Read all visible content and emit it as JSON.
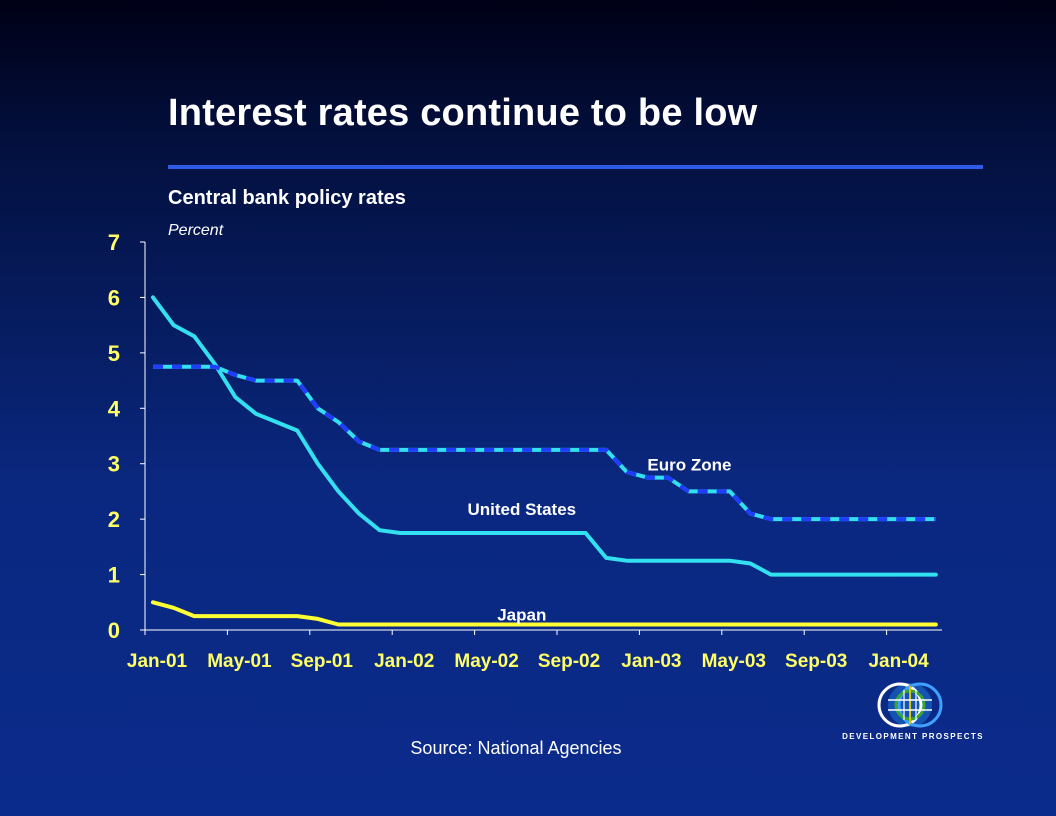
{
  "slide": {
    "title": "Interest rates continue to be low",
    "subtitle": "Central bank policy rates",
    "unit_label": "Percent",
    "source": "Source: National Agencies",
    "logo_text": "DEVELOPMENT PROSPECTS"
  },
  "colors": {
    "title_rule": "#2d5be6",
    "axis": "#ffffff",
    "y_tick_text": "#ffff66",
    "x_tick_text": "#ffff66"
  },
  "chart_data": {
    "type": "line",
    "title": "Central bank policy rates",
    "ylabel": "Percent",
    "xlabel": "",
    "ylim": [
      0,
      7
    ],
    "x_start": "Jan-01",
    "x_tick_labels": [
      "Jan-01",
      "May-01",
      "Sep-01",
      "Jan-02",
      "May-02",
      "Sep-02",
      "Jan-03",
      "May-03",
      "Sep-03",
      "Jan-04"
    ],
    "y_ticks": [
      0,
      1,
      2,
      3,
      4,
      5,
      6,
      7
    ],
    "grid": false,
    "legend": "inline labels",
    "series": [
      {
        "name": "United States",
        "style": "solid",
        "color": "#33e0f0",
        "label_at": [
          "Jul-02",
          2.2
        ],
        "points": [
          [
            "Jan-01",
            6.0
          ],
          [
            "Feb-01",
            5.5
          ],
          [
            "Mar-01",
            5.3
          ],
          [
            "Apr-01",
            4.8
          ],
          [
            "May-01",
            4.2
          ],
          [
            "Jun-01",
            3.9
          ],
          [
            "Jul-01",
            3.75
          ],
          [
            "Aug-01",
            3.6
          ],
          [
            "Sep-01",
            3.0
          ],
          [
            "Oct-01",
            2.5
          ],
          [
            "Nov-01",
            2.1
          ],
          [
            "Dec-01",
            1.8
          ],
          [
            "Jan-02",
            1.75
          ],
          [
            "Feb-02",
            1.75
          ],
          [
            "Mar-02",
            1.75
          ],
          [
            "Apr-02",
            1.75
          ],
          [
            "May-02",
            1.75
          ],
          [
            "Jun-02",
            1.75
          ],
          [
            "Jul-02",
            1.75
          ],
          [
            "Aug-02",
            1.75
          ],
          [
            "Sep-02",
            1.75
          ],
          [
            "Oct-02",
            1.75
          ],
          [
            "Nov-02",
            1.3
          ],
          [
            "Dec-02",
            1.25
          ],
          [
            "Jan-03",
            1.25
          ],
          [
            "Feb-03",
            1.25
          ],
          [
            "Mar-03",
            1.25
          ],
          [
            "Apr-03",
            1.25
          ],
          [
            "May-03",
            1.25
          ],
          [
            "Jun-03",
            1.2
          ],
          [
            "Jul-03",
            1.0
          ],
          [
            "Aug-03",
            1.0
          ],
          [
            "Sep-03",
            1.0
          ],
          [
            "Oct-03",
            1.0
          ],
          [
            "Nov-03",
            1.0
          ],
          [
            "Dec-03",
            1.0
          ],
          [
            "Jan-04",
            1.0
          ],
          [
            "Feb-04",
            1.0
          ],
          [
            "Mar-04",
            1.0
          ]
        ]
      },
      {
        "name": "Euro Zone",
        "style": "dashed",
        "color": "#33e0f0",
        "dash_color": "#1f3cff",
        "label_at": [
          "Jan-03",
          3.0
        ],
        "points": [
          [
            "Jan-01",
            4.75
          ],
          [
            "Feb-01",
            4.75
          ],
          [
            "Mar-01",
            4.75
          ],
          [
            "Apr-01",
            4.75
          ],
          [
            "May-01",
            4.6
          ],
          [
            "Jun-01",
            4.5
          ],
          [
            "Jul-01",
            4.5
          ],
          [
            "Aug-01",
            4.5
          ],
          [
            "Sep-01",
            4.0
          ],
          [
            "Oct-01",
            3.75
          ],
          [
            "Nov-01",
            3.4
          ],
          [
            "Dec-01",
            3.25
          ],
          [
            "Jan-02",
            3.25
          ],
          [
            "Feb-02",
            3.25
          ],
          [
            "Mar-02",
            3.25
          ],
          [
            "Apr-02",
            3.25
          ],
          [
            "May-02",
            3.25
          ],
          [
            "Jun-02",
            3.25
          ],
          [
            "Jul-02",
            3.25
          ],
          [
            "Aug-02",
            3.25
          ],
          [
            "Sep-02",
            3.25
          ],
          [
            "Oct-02",
            3.25
          ],
          [
            "Nov-02",
            3.25
          ],
          [
            "Dec-02",
            2.85
          ],
          [
            "Jan-03",
            2.75
          ],
          [
            "Feb-03",
            2.75
          ],
          [
            "Mar-03",
            2.5
          ],
          [
            "Apr-03",
            2.5
          ],
          [
            "May-03",
            2.5
          ],
          [
            "Jun-03",
            2.1
          ],
          [
            "Jul-03",
            2.0
          ],
          [
            "Aug-03",
            2.0
          ],
          [
            "Sep-03",
            2.0
          ],
          [
            "Oct-03",
            2.0
          ],
          [
            "Nov-03",
            2.0
          ],
          [
            "Dec-03",
            2.0
          ],
          [
            "Jan-04",
            2.0
          ],
          [
            "Feb-04",
            2.0
          ],
          [
            "Mar-04",
            2.0
          ]
        ]
      },
      {
        "name": "Japan",
        "style": "solid",
        "color": "#ffff33",
        "label_at": [
          "Jul-02",
          0.3
        ],
        "points": [
          [
            "Jan-01",
            0.5
          ],
          [
            "Feb-01",
            0.4
          ],
          [
            "Mar-01",
            0.25
          ],
          [
            "Apr-01",
            0.25
          ],
          [
            "May-01",
            0.25
          ],
          [
            "Jun-01",
            0.25
          ],
          [
            "Jul-01",
            0.25
          ],
          [
            "Aug-01",
            0.25
          ],
          [
            "Sep-01",
            0.2
          ],
          [
            "Oct-01",
            0.1
          ],
          [
            "Nov-01",
            0.1
          ],
          [
            "Dec-01",
            0.1
          ],
          [
            "Jan-02",
            0.1
          ],
          [
            "Jun-02",
            0.1
          ],
          [
            "Jan-03",
            0.1
          ],
          [
            "Jun-03",
            0.1
          ],
          [
            "Jan-04",
            0.1
          ],
          [
            "Mar-04",
            0.1
          ]
        ]
      }
    ]
  }
}
